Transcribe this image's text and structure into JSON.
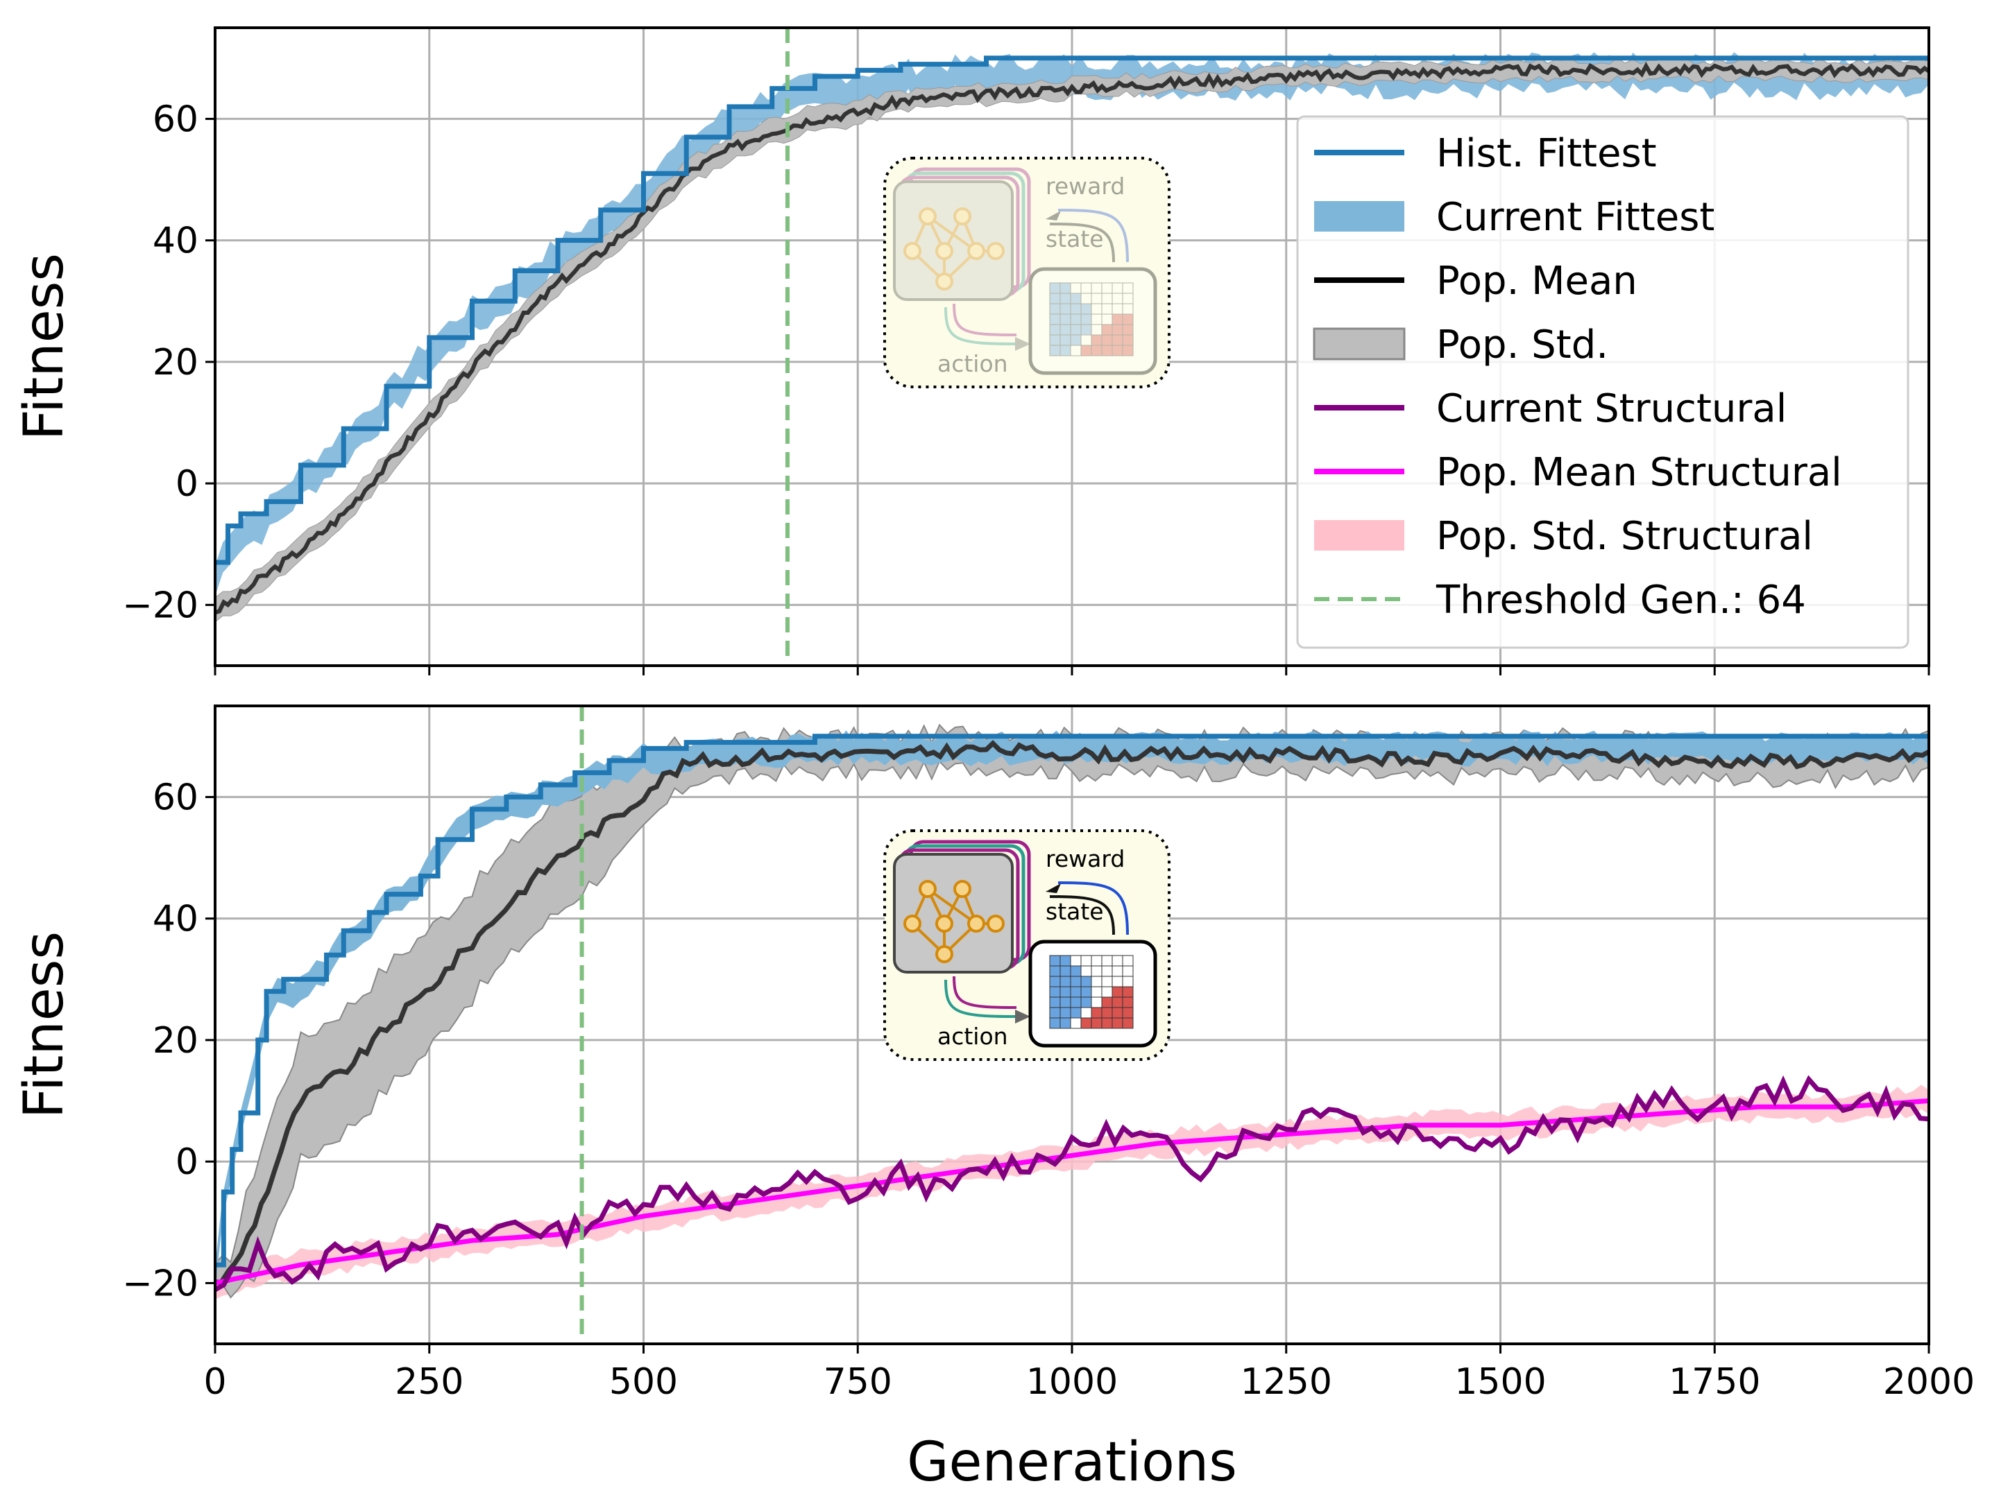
{
  "chart_data": [
    {
      "type": "line",
      "panel": "top",
      "xlabel": "",
      "ylabel": "Fitness",
      "xlim": [
        0,
        2000
      ],
      "ylim": [
        -30,
        75
      ],
      "xticks": [
        0,
        250,
        500,
        750,
        1000,
        1250,
        1500,
        1750,
        2000
      ],
      "yticks": [
        -20,
        0,
        20,
        40,
        60
      ],
      "ytick_labels": [
        "−20",
        "0",
        "20",
        "40",
        "60"
      ],
      "grid": true,
      "threshold_x": 668,
      "series": [
        {
          "name": "Hist. Fittest",
          "color": "#1f77b4",
          "x": [
            0,
            15,
            30,
            60,
            100,
            150,
            200,
            250,
            300,
            350,
            400,
            450,
            500,
            550,
            600,
            650,
            700,
            750,
            800,
            900,
            1000,
            1500,
            2000
          ],
          "values": [
            -13,
            -7,
            -5,
            -3,
            3,
            9,
            16,
            24,
            30,
            35,
            40,
            45,
            51,
            57,
            62,
            65,
            67,
            68,
            69,
            70,
            70,
            70,
            70
          ]
        },
        {
          "name": "Pop. Mean",
          "color": "#000000",
          "x": [
            0,
            25,
            50,
            100,
            150,
            200,
            250,
            300,
            350,
            400,
            450,
            500,
            550,
            600,
            650,
            700,
            750,
            800,
            900,
            1000,
            1250,
            1500,
            1750,
            2000
          ],
          "values": [
            -21,
            -19,
            -16,
            -11,
            -5,
            3,
            11,
            19,
            26,
            33,
            38,
            44,
            51,
            55,
            58,
            60,
            61,
            63,
            64,
            65,
            67,
            68,
            68,
            68
          ]
        },
        {
          "name": "Pop. Std.",
          "color": "#808080",
          "band_half_width": [
            2,
            2,
            2,
            2,
            2,
            2,
            2,
            2,
            2,
            2,
            2,
            2,
            2,
            2,
            2,
            2,
            2,
            1.5,
            1.5,
            1.5,
            1.5,
            1.5,
            1.5,
            1.5
          ]
        }
      ]
    },
    {
      "type": "line",
      "panel": "bottom",
      "xlabel": "Generations",
      "ylabel": "Fitness",
      "xlim": [
        0,
        2000
      ],
      "ylim": [
        -30,
        75
      ],
      "xticks": [
        0,
        250,
        500,
        750,
        1000,
        1250,
        1500,
        1750,
        2000
      ],
      "yticks": [
        -20,
        0,
        20,
        40,
        60
      ],
      "ytick_labels": [
        "−20",
        "0",
        "20",
        "40",
        "60"
      ],
      "grid": true,
      "threshold_x": 428,
      "series": [
        {
          "name": "Hist. Fittest",
          "color": "#1f77b4",
          "x": [
            0,
            10,
            20,
            30,
            50,
            60,
            80,
            100,
            130,
            150,
            180,
            200,
            240,
            260,
            300,
            340,
            380,
            420,
            460,
            500,
            550,
            600,
            700,
            800,
            1000,
            1500,
            2000
          ],
          "values": [
            -17,
            -5,
            2,
            8,
            20,
            28,
            30,
            30,
            34,
            38,
            41,
            44,
            47,
            53,
            58,
            60,
            62,
            64,
            66,
            68,
            69,
            69,
            70,
            70,
            70,
            70,
            70
          ]
        },
        {
          "name": "Pop. Mean",
          "color": "#333333",
          "x": [
            0,
            20,
            40,
            60,
            80,
            100,
            130,
            160,
            200,
            240,
            280,
            320,
            360,
            400,
            440,
            480,
            520,
            560,
            600,
            650,
            700,
            800,
            900,
            1000,
            1100,
            1200,
            1300,
            1400,
            1500,
            1600,
            1700,
            1800,
            1900,
            2000
          ],
          "values": [
            -20,
            -18,
            -12,
            -5,
            3,
            10,
            13,
            16,
            22,
            27,
            33,
            39,
            45,
            50,
            54,
            58,
            63,
            66,
            66,
            67,
            67,
            67,
            68,
            67,
            67,
            67,
            67,
            66,
            67,
            67,
            66,
            66,
            66,
            67
          ]
        },
        {
          "name": "Pop. Std.",
          "color": "#808080",
          "band_half_width": [
            2,
            3,
            8,
            10,
            10,
            10,
            10,
            10,
            10,
            10,
            9,
            9,
            9,
            9,
            8,
            7,
            5,
            3,
            3,
            3,
            3,
            3,
            3,
            3,
            3,
            3,
            3,
            3,
            3,
            3,
            3,
            3,
            3,
            3
          ]
        },
        {
          "name": "Current Structural",
          "color": "#800080",
          "x": [
            0,
            50,
            100,
            150,
            200,
            250,
            300,
            350,
            400,
            450,
            500,
            550,
            600,
            650,
            700,
            750,
            800,
            850,
            900,
            950,
            1000,
            1050,
            1100,
            1150,
            1200,
            1250,
            1300,
            1350,
            1400,
            1450,
            1500,
            1550,
            1600,
            1650,
            1700,
            1750,
            1800,
            1850,
            1900,
            1950,
            2000
          ],
          "values": [
            -22,
            -15,
            -20,
            -13,
            -16,
            -12,
            -13,
            -10,
            -12,
            -9,
            -6,
            -4,
            -8,
            -4,
            -3,
            -6,
            -2,
            -5,
            -1,
            0,
            2,
            5,
            3,
            -1,
            4,
            6,
            10,
            5,
            5,
            4,
            3,
            6,
            5,
            9,
            10,
            8,
            11,
            12,
            10,
            10,
            7
          ]
        },
        {
          "name": "Pop. Mean Structural",
          "color": "#ff00ff",
          "x": [
            0,
            100,
            200,
            300,
            400,
            500,
            600,
            700,
            800,
            900,
            1000,
            1100,
            1200,
            1300,
            1400,
            1500,
            1600,
            1700,
            1800,
            1900,
            2000
          ],
          "values": [
            -20,
            -17,
            -15,
            -13,
            -12,
            -9,
            -7,
            -5,
            -3,
            -1,
            1,
            3,
            4,
            5,
            6,
            6,
            7,
            8,
            9,
            9,
            10
          ]
        },
        {
          "name": "Pop. Std. Structural",
          "color": "#ffc0cb",
          "band_half_width": [
            2,
            2,
            2,
            2,
            2,
            2,
            2,
            2,
            2,
            2,
            2,
            2,
            2,
            2,
            2,
            2,
            2,
            2,
            2,
            2,
            2
          ]
        }
      ]
    }
  ],
  "legend": {
    "placement": "top-right of top panel",
    "entries": [
      {
        "label": "Hist. Fittest",
        "kind": "line",
        "color": "#1f77b4"
      },
      {
        "label": "Current Fittest",
        "kind": "patch",
        "color": "#7eb6da"
      },
      {
        "label": "Pop. Mean",
        "kind": "line",
        "color": "#000000"
      },
      {
        "label": "Pop. Std.",
        "kind": "patch",
        "color": "#bdbdbd"
      },
      {
        "label": "Current Structural",
        "kind": "line",
        "color": "#800080"
      },
      {
        "label": "Pop. Mean Structural",
        "kind": "line",
        "color": "#ff00ff"
      },
      {
        "label": "Pop. Std. Structural",
        "kind": "patch",
        "color": "#ffc0cb"
      },
      {
        "label": "Threshold Gen.: 64",
        "kind": "dashed",
        "color": "#7fbf7f"
      }
    ]
  },
  "inset": {
    "reward_label": "reward",
    "state_label": "state",
    "action_label": "action"
  },
  "colors": {
    "hist_fittest": "#1f77b4",
    "current_fittest": "#7eb6da",
    "pop_mean": "#333333",
    "pop_std": "#bdbdbd",
    "structural": "#800080",
    "mean_structural": "#ff00ff",
    "std_structural": "#ffc0cb",
    "threshold": "#7fbf7f"
  }
}
